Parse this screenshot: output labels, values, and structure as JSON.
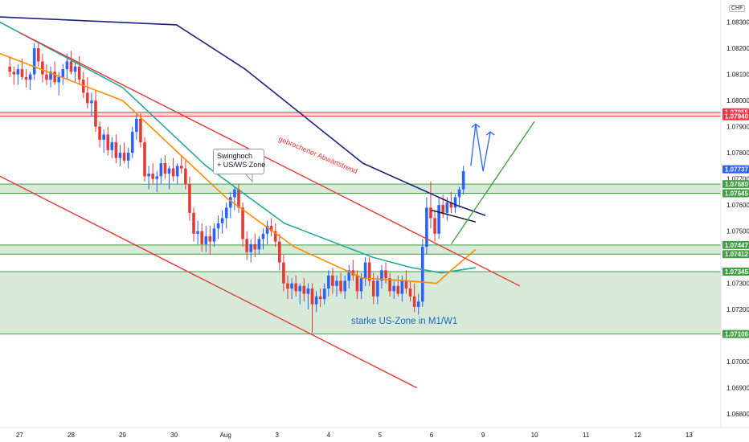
{
  "currency": "CHF",
  "chart_data": {
    "type": "candlestick",
    "ylim": [
      1.06748,
      1.08385
    ],
    "yticks": [
      1.083,
      1.082,
      1.081,
      1.08,
      1.079,
      1.078,
      1.077,
      1.076,
      1.075,
      1.073,
      1.072,
      1.07,
      1.069,
      1.068
    ],
    "xticks": [
      {
        "label": "27",
        "t": 0.4
      },
      {
        "label": "28",
        "t": 1.45
      },
      {
        "label": "29",
        "t": 2.5
      },
      {
        "label": "30",
        "t": 3.55
      },
      {
        "label": "Aug",
        "t": 4.6
      },
      {
        "label": "3",
        "t": 5.65
      },
      {
        "label": "4",
        "t": 6.7
      },
      {
        "label": "5",
        "t": 7.75
      },
      {
        "label": "6",
        "t": 8.8
      },
      {
        "label": "9",
        "t": 9.85
      },
      {
        "label": "10",
        "t": 10.9
      },
      {
        "label": "11",
        "t": 11.95
      },
      {
        "label": "12",
        "t": 13.0
      },
      {
        "label": "13",
        "t": 14.05
      }
    ],
    "xlim": [
      0.0,
      14.7
    ],
    "price_badges": [
      {
        "value": "1.07955",
        "color": "#f23645"
      },
      {
        "value": "1.07940",
        "color": "#f23645"
      },
      {
        "value": "1.07737",
        "color": "#2962ff"
      },
      {
        "value": "1.07680",
        "color": "#43a047"
      },
      {
        "value": "1.07645",
        "color": "#43a047"
      },
      {
        "value": "1.07447",
        "color": "#43a047"
      },
      {
        "value": "1.07412",
        "color": "#43a047"
      },
      {
        "value": "1.07345",
        "color": "#43a047"
      },
      {
        "value": "1.07106",
        "color": "#43a047"
      }
    ],
    "zones": [
      {
        "from": 1.0794,
        "to": 1.07955,
        "color": "#f23645"
      },
      {
        "from": 1.07645,
        "to": 1.0768,
        "color": "#43a047"
      },
      {
        "from": 1.07412,
        "to": 1.07447,
        "color": "#43a047"
      },
      {
        "from": 1.07106,
        "to": 1.07345,
        "color": "#43a047"
      }
    ],
    "moving_averages": [
      {
        "color": "#1a237e",
        "points": [
          [
            0,
            1.0832
          ],
          [
            3.6,
            1.0829
          ],
          [
            5.0,
            1.0812
          ],
          [
            7.4,
            1.0776
          ],
          [
            9.3,
            1.076
          ],
          [
            9.9,
            1.0756
          ]
        ]
      },
      {
        "color": "#26a69a",
        "points": [
          [
            0,
            1.083
          ],
          [
            2.5,
            1.0805
          ],
          [
            4.2,
            1.0775
          ],
          [
            5.8,
            1.0753
          ],
          [
            7.6,
            1.074
          ],
          [
            8.4,
            1.0736
          ],
          [
            9.0,
            1.0734
          ],
          [
            9.7,
            1.0736
          ]
        ]
      },
      {
        "color": "#fb8c00",
        "points": [
          [
            0,
            1.0818
          ],
          [
            2.5,
            1.08
          ],
          [
            4.6,
            1.0763
          ],
          [
            6.0,
            1.0744
          ],
          [
            7.4,
            1.0732
          ],
          [
            8.3,
            1.0731
          ],
          [
            8.9,
            1.073
          ],
          [
            9.2,
            1.0735
          ],
          [
            9.7,
            1.0743
          ]
        ]
      }
    ],
    "trendlines": [
      {
        "color": "#e53935",
        "from": [
          0.4,
          1.0826
        ],
        "to": [
          10.6,
          1.0729
        ]
      },
      {
        "color": "#e53935",
        "from": [
          0.0,
          1.0771
        ],
        "to": [
          8.5,
          1.069
        ]
      },
      {
        "color": "#131722",
        "from": [
          8.8,
          1.0758
        ],
        "to": [
          9.7,
          1.07535
        ]
      },
      {
        "color": "#43a047",
        "from": [
          9.2,
          1.0745
        ],
        "to": [
          10.9,
          1.0792
        ]
      }
    ],
    "projection": {
      "color": "#2962ff",
      "points": [
        [
          9.6,
          1.0775
        ],
        [
          9.7,
          1.0791
        ],
        [
          9.85,
          1.0773
        ],
        [
          10.0,
          1.0788
        ]
      ]
    },
    "candles": [
      [
        1.0813,
        1.0817,
        1.0809,
        1.0811
      ],
      [
        1.0811,
        1.0813,
        1.0806,
        1.081
      ],
      [
        1.081,
        1.0814,
        1.0806,
        1.0812
      ],
      [
        1.0812,
        1.0816,
        1.0808,
        1.0809
      ],
      [
        1.0809,
        1.0812,
        1.0805,
        1.0808
      ],
      [
        1.0808,
        1.0811,
        1.0804,
        1.081
      ],
      [
        1.081,
        1.0822,
        1.0808,
        1.082
      ],
      [
        1.082,
        1.0822,
        1.0813,
        1.0815
      ],
      [
        1.0815,
        1.0818,
        1.0807,
        1.081
      ],
      [
        1.081,
        1.0814,
        1.0806,
        1.0808
      ],
      [
        1.0808,
        1.0813,
        1.0805,
        1.0811
      ],
      [
        1.0811,
        1.0815,
        1.0806,
        1.0807
      ],
      [
        1.0807,
        1.0811,
        1.0802,
        1.0809
      ],
      [
        1.0809,
        1.0814,
        1.0806,
        1.0812
      ],
      [
        1.0812,
        1.0818,
        1.0808,
        1.0815
      ],
      [
        1.0815,
        1.0819,
        1.081,
        1.0811
      ],
      [
        1.0811,
        1.0815,
        1.0807,
        1.0813
      ],
      [
        1.0813,
        1.0817,
        1.0806,
        1.0808
      ],
      [
        1.0808,
        1.0811,
        1.0801,
        1.0803
      ],
      [
        1.0803,
        1.0809,
        1.0797,
        1.0799
      ],
      [
        1.0799,
        1.0803,
        1.0794,
        1.08
      ],
      [
        1.08,
        1.0804,
        1.0788,
        1.079
      ],
      [
        1.079,
        1.0792,
        1.0782,
        1.0785
      ],
      [
        1.0785,
        1.0789,
        1.078,
        1.0787
      ],
      [
        1.0787,
        1.079,
        1.0779,
        1.0781
      ],
      [
        1.0781,
        1.0786,
        1.0778,
        1.0784
      ],
      [
        1.0784,
        1.0787,
        1.0776,
        1.0778
      ],
      [
        1.0778,
        1.0783,
        1.0775,
        1.078
      ],
      [
        1.078,
        1.0784,
        1.0776,
        1.0777
      ],
      [
        1.0777,
        1.0782,
        1.0774,
        1.078
      ],
      [
        1.078,
        1.079,
        1.0778,
        1.0788
      ],
      [
        1.0788,
        1.0795,
        1.0785,
        1.0793
      ],
      [
        1.0793,
        1.0795,
        1.0782,
        1.0784
      ],
      [
        1.0784,
        1.0786,
        1.0769,
        1.0771
      ],
      [
        1.0771,
        1.0775,
        1.0766,
        1.0772
      ],
      [
        1.0772,
        1.0776,
        1.0768,
        1.077
      ],
      [
        1.077,
        1.0773,
        1.0765,
        1.0771
      ],
      [
        1.0771,
        1.0778,
        1.0768,
        1.0776
      ],
      [
        1.0776,
        1.0779,
        1.077,
        1.0772
      ],
      [
        1.0772,
        1.0775,
        1.0766,
        1.0774
      ],
      [
        1.0774,
        1.0778,
        1.0769,
        1.0771
      ],
      [
        1.0771,
        1.0776,
        1.0768,
        1.0775
      ],
      [
        1.0775,
        1.0779,
        1.0772,
        1.0774
      ],
      [
        1.0774,
        1.0777,
        1.0766,
        1.0768
      ],
      [
        1.0768,
        1.0771,
        1.0754,
        1.0757
      ],
      [
        1.0757,
        1.0759,
        1.0746,
        1.0749
      ],
      [
        1.0749,
        1.0754,
        1.0745,
        1.075
      ],
      [
        1.075,
        1.0753,
        1.0742,
        1.0745
      ],
      [
        1.0745,
        1.0752,
        1.0742,
        1.0748
      ],
      [
        1.0748,
        1.0752,
        1.0741,
        1.0746
      ],
      [
        1.0746,
        1.0753,
        1.0744,
        1.0751
      ],
      [
        1.0751,
        1.0756,
        1.0747,
        1.0753
      ],
      [
        1.0753,
        1.0758,
        1.0749,
        1.0755
      ],
      [
        1.0755,
        1.0761,
        1.0751,
        1.0759
      ],
      [
        1.0759,
        1.0765,
        1.0755,
        1.0763
      ],
      [
        1.0763,
        1.0767,
        1.0758,
        1.0766
      ],
      [
        1.0766,
        1.0768,
        1.0757,
        1.0759
      ],
      [
        1.0759,
        1.0761,
        1.0744,
        1.0747
      ],
      [
        1.0747,
        1.075,
        1.0739,
        1.0742
      ],
      [
        1.0742,
        1.0747,
        1.0738,
        1.0745
      ],
      [
        1.0745,
        1.0749,
        1.074,
        1.0743
      ],
      [
        1.0743,
        1.0748,
        1.0741,
        1.0747
      ],
      [
        1.0747,
        1.0751,
        1.0743,
        1.0749
      ],
      [
        1.0749,
        1.0754,
        1.0745,
        1.0752
      ],
      [
        1.0752,
        1.0755,
        1.0748,
        1.075
      ],
      [
        1.075,
        1.0753,
        1.0744,
        1.0746
      ],
      [
        1.0746,
        1.0749,
        1.0735,
        1.0738
      ],
      [
        1.0738,
        1.0741,
        1.0727,
        1.073
      ],
      [
        1.073,
        1.0733,
        1.0724,
        1.0728
      ],
      [
        1.0728,
        1.0732,
        1.0724,
        1.073
      ],
      [
        1.073,
        1.0733,
        1.0725,
        1.0727
      ],
      [
        1.0727,
        1.073,
        1.0722,
        1.0729
      ],
      [
        1.0729,
        1.0732,
        1.0723,
        1.0726
      ],
      [
        1.0726,
        1.073,
        1.072,
        1.0728
      ],
      [
        1.0728,
        1.073,
        1.0711,
        1.0722
      ],
      [
        1.0722,
        1.0727,
        1.0719,
        1.0725
      ],
      [
        1.0725,
        1.0728,
        1.0721,
        1.0724
      ],
      [
        1.0724,
        1.073,
        1.0722,
        1.0728
      ],
      [
        1.0728,
        1.0735,
        1.0725,
        1.0733
      ],
      [
        1.0733,
        1.0736,
        1.0726,
        1.0729
      ],
      [
        1.0729,
        1.0733,
        1.0725,
        1.0731
      ],
      [
        1.0731,
        1.0734,
        1.0726,
        1.0727
      ],
      [
        1.0727,
        1.0733,
        1.0724,
        1.0731
      ],
      [
        1.0731,
        1.0737,
        1.0728,
        1.0735
      ],
      [
        1.0735,
        1.0739,
        1.0731,
        1.0733
      ],
      [
        1.0733,
        1.0735,
        1.0724,
        1.0727
      ],
      [
        1.0727,
        1.0734,
        1.0724,
        1.0732
      ],
      [
        1.0732,
        1.074,
        1.0729,
        1.0738
      ],
      [
        1.0738,
        1.074,
        1.0729,
        1.0731
      ],
      [
        1.0731,
        1.0734,
        1.0722,
        1.0725
      ],
      [
        1.0725,
        1.0733,
        1.0722,
        1.0731
      ],
      [
        1.0731,
        1.0737,
        1.0728,
        1.0735
      ],
      [
        1.0735,
        1.0738,
        1.073,
        1.0732
      ],
      [
        1.0732,
        1.0734,
        1.0725,
        1.0727
      ],
      [
        1.0727,
        1.0731,
        1.0724,
        1.0729
      ],
      [
        1.0729,
        1.0733,
        1.0725,
        1.0726
      ],
      [
        1.0726,
        1.0733,
        1.0723,
        1.0731
      ],
      [
        1.0731,
        1.0735,
        1.0726,
        1.0728
      ],
      [
        1.0728,
        1.0731,
        1.0723,
        1.0725
      ],
      [
        1.0725,
        1.073,
        1.0719,
        1.0721
      ],
      [
        1.0721,
        1.0726,
        1.0718,
        1.0723
      ],
      [
        1.0723,
        1.0747,
        1.0721,
        1.0744
      ],
      [
        1.0744,
        1.0763,
        1.0741,
        1.0759
      ],
      [
        1.0759,
        1.0769,
        1.0751,
        1.0755
      ],
      [
        1.0755,
        1.0758,
        1.0746,
        1.0749
      ],
      [
        1.0749,
        1.0763,
        1.0747,
        1.076
      ],
      [
        1.076,
        1.0764,
        1.0755,
        1.0757
      ],
      [
        1.0757,
        1.0763,
        1.0754,
        1.0761
      ],
      [
        1.0761,
        1.0765,
        1.0757,
        1.0759
      ],
      [
        1.0759,
        1.0764,
        1.0757,
        1.0763
      ],
      [
        1.0763,
        1.0767,
        1.0759,
        1.0766
      ],
      [
        1.0766,
        1.0775,
        1.0764,
        1.0773
      ]
    ],
    "annotations": {
      "callout_line1": "Swinghoch",
      "callout_line2": "+ US/WS Zone",
      "trend_label": "gebrochener Abwärtstrend",
      "zone_label": "starke US-Zone in M1/W1"
    }
  }
}
